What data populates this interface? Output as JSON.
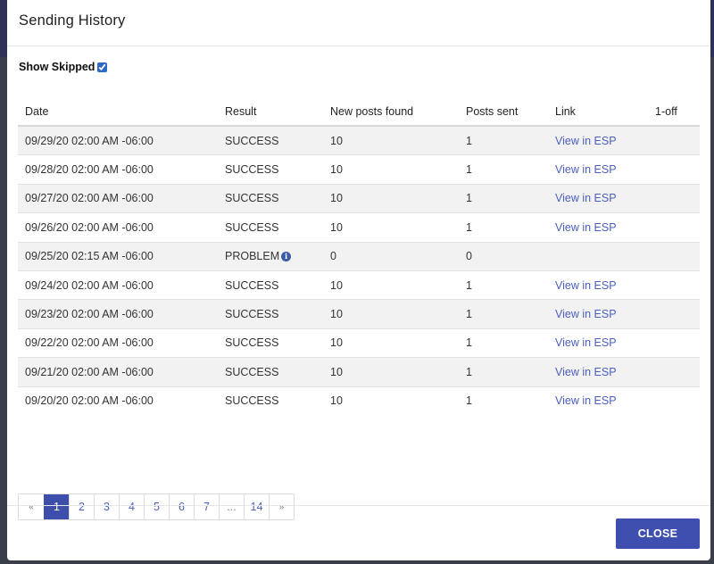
{
  "modal": {
    "title": "Sending History",
    "show_skipped_label": "Show Skipped",
    "show_skipped_checked": true,
    "close_label": "CLOSE"
  },
  "table": {
    "headers": [
      "Date",
      "Result",
      "New posts found",
      "Posts sent",
      "Link",
      "1-off"
    ],
    "rows": [
      {
        "date": "09/29/20 02:00 AM -06:00",
        "result": "SUCCESS",
        "new_posts": "10",
        "posts_sent": "1",
        "link": "View in ESP",
        "one_off": ""
      },
      {
        "date": "09/28/20 02:00 AM -06:00",
        "result": "SUCCESS",
        "new_posts": "10",
        "posts_sent": "1",
        "link": "View in ESP",
        "one_off": ""
      },
      {
        "date": "09/27/20 02:00 AM -06:00",
        "result": "SUCCESS",
        "new_posts": "10",
        "posts_sent": "1",
        "link": "View in ESP",
        "one_off": ""
      },
      {
        "date": "09/26/20 02:00 AM -06:00",
        "result": "SUCCESS",
        "new_posts": "10",
        "posts_sent": "1",
        "link": "View in ESP",
        "one_off": ""
      },
      {
        "date": "09/25/20 02:15 AM -06:00",
        "result": "PROBLEM",
        "result_icon": "info-icon",
        "new_posts": "0",
        "posts_sent": "0",
        "link": "",
        "one_off": ""
      },
      {
        "date": "09/24/20 02:00 AM -06:00",
        "result": "SUCCESS",
        "new_posts": "10",
        "posts_sent": "1",
        "link": "View in ESP",
        "one_off": ""
      },
      {
        "date": "09/23/20 02:00 AM -06:00",
        "result": "SUCCESS",
        "new_posts": "10",
        "posts_sent": "1",
        "link": "View in ESP",
        "one_off": ""
      },
      {
        "date": "09/22/20 02:00 AM -06:00",
        "result": "SUCCESS",
        "new_posts": "10",
        "posts_sent": "1",
        "link": "View in ESP",
        "one_off": ""
      },
      {
        "date": "09/21/20 02:00 AM -06:00",
        "result": "SUCCESS",
        "new_posts": "10",
        "posts_sent": "1",
        "link": "View in ESP",
        "one_off": ""
      },
      {
        "date": "09/20/20 02:00 AM -06:00",
        "result": "SUCCESS",
        "new_posts": "10",
        "posts_sent": "1",
        "link": "View in ESP",
        "one_off": ""
      }
    ]
  },
  "pagination": {
    "prev": "«",
    "pages": [
      "1",
      "2",
      "3",
      "4",
      "5",
      "6",
      "7",
      "...",
      "14"
    ],
    "active_page": "1",
    "next": "»"
  },
  "colors": {
    "accent": "#3f4fb0",
    "link": "#4b5fbf",
    "info_icon": "#3b5ba8"
  }
}
